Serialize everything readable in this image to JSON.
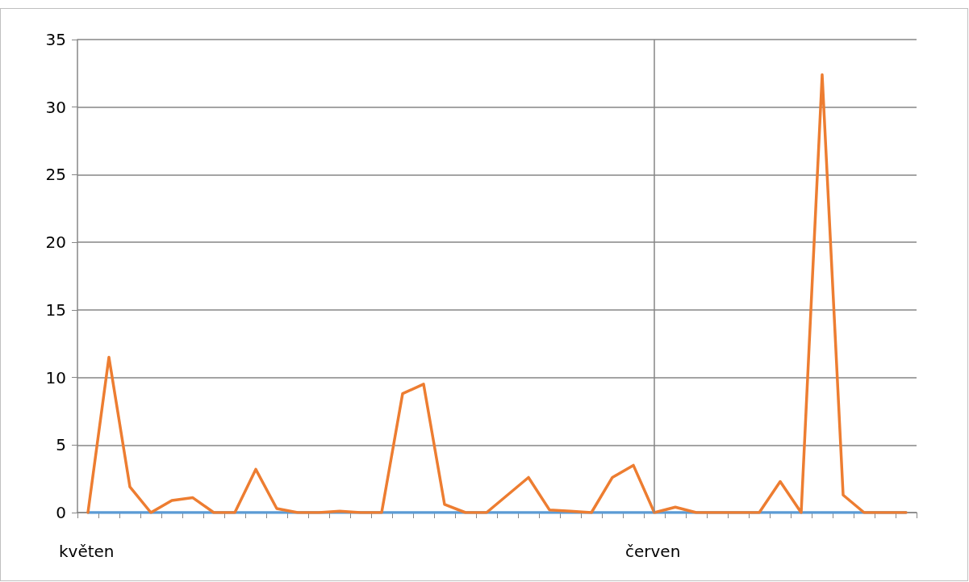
{
  "chart_data": {
    "type": "line",
    "categories": [
      "květen",
      null,
      null,
      null,
      null,
      null,
      null,
      null,
      null,
      null,
      null,
      null,
      null,
      null,
      null,
      null,
      null,
      null,
      null,
      null,
      null,
      null,
      null,
      null,
      null,
      null,
      null,
      "červen",
      null,
      null,
      null,
      null,
      null,
      null,
      null,
      null,
      null,
      null,
      null,
      null
    ],
    "series": [
      {
        "color": "#5b9bd5",
        "values": [
          0,
          0,
          0,
          0,
          0,
          0,
          0,
          0,
          0,
          0,
          0,
          0,
          0,
          0,
          0,
          0,
          0,
          0,
          0,
          0,
          0,
          0,
          0,
          0,
          0,
          0,
          0,
          0,
          0,
          0,
          0,
          0,
          0,
          0,
          0,
          0,
          0,
          0,
          0,
          0
        ]
      },
      {
        "color": "#ed7d31",
        "values": [
          0,
          11.5,
          1.9,
          0,
          0.9,
          1.1,
          0,
          0,
          3.2,
          0.3,
          0,
          0,
          0.1,
          0,
          0,
          8.8,
          9.5,
          0.6,
          0,
          0,
          1.3,
          2.6,
          0.2,
          0.1,
          0,
          2.6,
          3.5,
          0,
          0.4,
          0,
          0,
          0,
          0,
          2.3,
          0,
          32.4,
          1.3,
          0,
          0,
          0
        ]
      }
    ],
    "ylim": [
      0,
      35
    ],
    "yticks": [
      0,
      5,
      10,
      15,
      20,
      25,
      30,
      35
    ],
    "ref_lines": [
      {
        "axis": "x",
        "value": "červen",
        "color": "#868686"
      }
    ],
    "grid": "y",
    "marker": "none",
    "line_style": "solid"
  }
}
